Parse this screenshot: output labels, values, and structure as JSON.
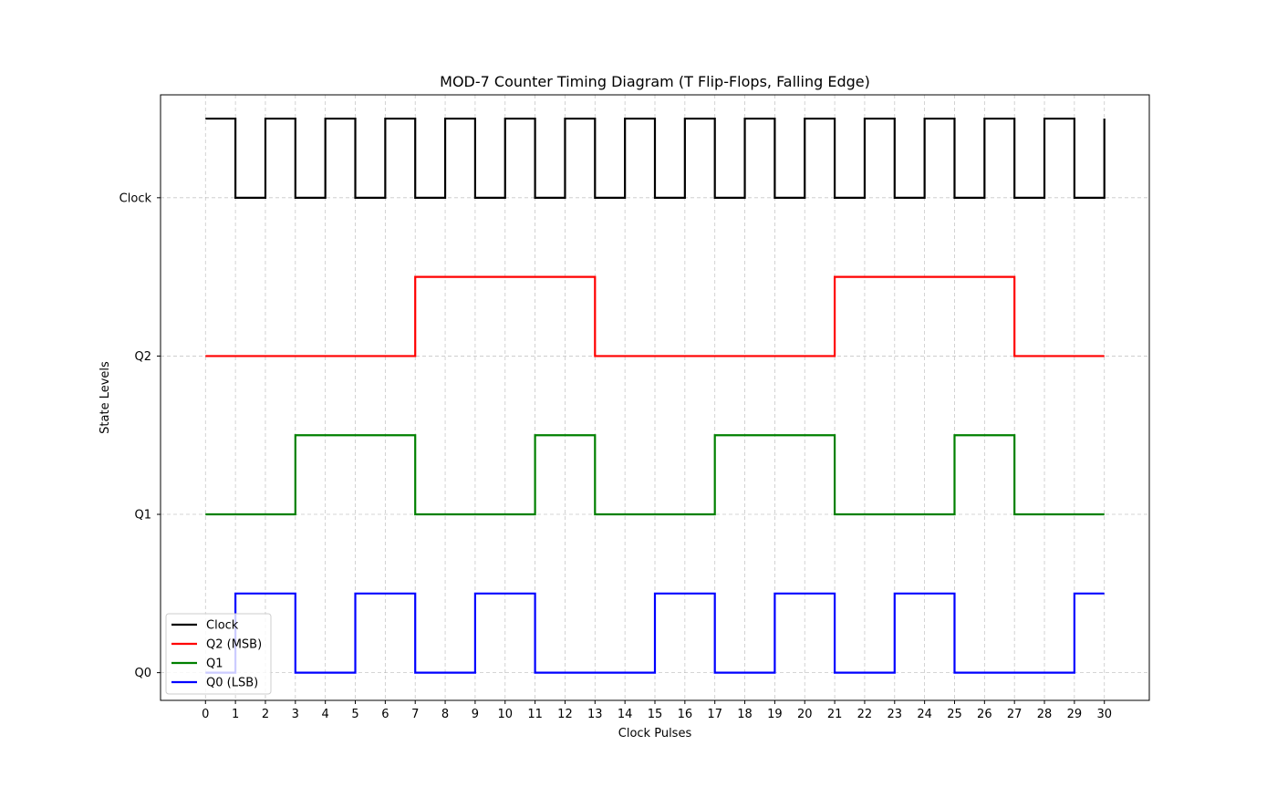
{
  "chart_data": {
    "type": "line",
    "title": "MOD-7 Counter Timing Diagram (T Flip-Flops, Falling Edge)",
    "xlabel": "Clock Pulses",
    "ylabel": "State Levels",
    "xlim": [
      -1.5,
      31.5
    ],
    "ylim": [
      -0.35,
      7.3
    ],
    "xticks": [
      0,
      1,
      2,
      3,
      4,
      5,
      6,
      7,
      8,
      9,
      10,
      11,
      12,
      13,
      14,
      15,
      16,
      17,
      18,
      19,
      20,
      21,
      22,
      23,
      24,
      25,
      26,
      27,
      28,
      29,
      30
    ],
    "yticks": [
      {
        "label": "Q0",
        "value": 0
      },
      {
        "label": "Q1",
        "value": 2
      },
      {
        "label": "Q2",
        "value": 4
      },
      {
        "label": "Clock",
        "value": 6
      }
    ],
    "grid": true,
    "legend_position": "lower-left",
    "series": [
      {
        "name": "Clock",
        "color": "#000000",
        "offset": 6,
        "step_x": [
          0,
          1,
          2,
          3,
          4,
          5,
          6,
          7,
          8,
          9,
          10,
          11,
          12,
          13,
          14,
          15,
          16,
          17,
          18,
          19,
          20,
          21,
          22,
          23,
          24,
          25,
          26,
          27,
          28,
          29,
          30
        ],
        "levels": [
          1,
          0,
          1,
          0,
          1,
          0,
          1,
          0,
          1,
          0,
          1,
          0,
          1,
          0,
          1,
          0,
          1,
          0,
          1,
          0,
          1,
          0,
          1,
          0,
          1,
          0,
          1,
          0,
          1,
          0,
          1
        ]
      },
      {
        "name": "Q2 (MSB)",
        "color": "#ff0000",
        "offset": 4,
        "step_x": [
          0,
          1,
          2,
          3,
          4,
          5,
          6,
          7,
          8,
          9,
          10,
          11,
          12,
          13,
          14,
          15,
          16,
          17,
          18,
          19,
          20,
          21,
          22,
          23,
          24,
          25,
          26,
          27,
          28,
          29,
          30
        ],
        "levels": [
          0,
          0,
          0,
          0,
          0,
          0,
          0,
          1,
          1,
          1,
          1,
          1,
          1,
          0,
          0,
          0,
          0,
          0,
          0,
          0,
          0,
          1,
          1,
          1,
          1,
          1,
          1,
          0,
          0,
          0,
          0
        ]
      },
      {
        "name": "Q1",
        "color": "#008000",
        "offset": 2,
        "step_x": [
          0,
          1,
          2,
          3,
          4,
          5,
          6,
          7,
          8,
          9,
          10,
          11,
          12,
          13,
          14,
          15,
          16,
          17,
          18,
          19,
          20,
          21,
          22,
          23,
          24,
          25,
          26,
          27,
          28,
          29,
          30
        ],
        "levels": [
          0,
          0,
          0,
          1,
          1,
          1,
          1,
          0,
          0,
          0,
          0,
          1,
          1,
          0,
          0,
          0,
          0,
          1,
          1,
          1,
          1,
          0,
          0,
          0,
          0,
          1,
          1,
          0,
          0,
          0,
          0
        ]
      },
      {
        "name": "Q0 (LSB)",
        "color": "#0000ff",
        "offset": 0,
        "step_x": [
          0,
          1,
          2,
          3,
          4,
          5,
          6,
          7,
          8,
          9,
          10,
          11,
          12,
          13,
          14,
          15,
          16,
          17,
          18,
          19,
          20,
          21,
          22,
          23,
          24,
          25,
          26,
          27,
          28,
          29,
          30
        ],
        "levels": [
          0,
          1,
          1,
          0,
          0,
          1,
          1,
          0,
          0,
          1,
          1,
          0,
          0,
          0,
          0,
          1,
          1,
          0,
          0,
          1,
          1,
          0,
          0,
          1,
          1,
          0,
          0,
          0,
          0,
          1,
          1
        ]
      }
    ]
  }
}
